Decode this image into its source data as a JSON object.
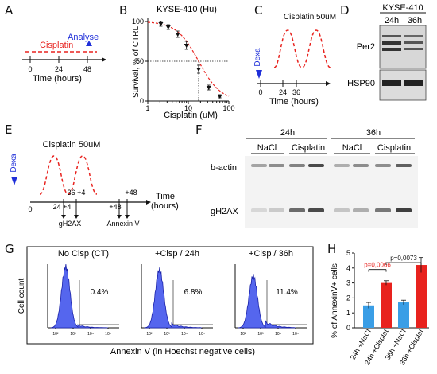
{
  "panels": {
    "A": {
      "letter": "A",
      "treatment": "Cisplatin",
      "analyse": "Analyse",
      "ticks": [
        "0",
        "24",
        "48"
      ],
      "xlabel": "Time (hours)",
      "colors": {
        "treatment": "#e8221e",
        "analyse": "#1f2fd9"
      }
    },
    "B": {
      "letter": "B",
      "chart_data": {
        "type": "scatter",
        "title": "KYSE-410 (Hu)",
        "xlabel": "Cisplatin (uM)",
        "ylabel": "Survival, % of CTRL",
        "x_scale": "log",
        "xlim": [
          1,
          100
        ],
        "ylim": [
          0,
          105
        ],
        "xticks": [
          "1",
          "10",
          "100"
        ],
        "yticks": [
          "0",
          "50",
          "100"
        ],
        "points": [
          {
            "x": 2.1,
            "y": 97,
            "err": 3
          },
          {
            "x": 3.2,
            "y": 93,
            "err": 3
          },
          {
            "x": 5.5,
            "y": 84,
            "err": 4
          },
          {
            "x": 9,
            "y": 70,
            "err": 5
          },
          {
            "x": 18,
            "y": 40,
            "err": 5
          },
          {
            "x": 32,
            "y": 17,
            "err": 3
          },
          {
            "x": 60,
            "y": 6,
            "err": 2
          }
        ],
        "fit": {
          "ic50": 18,
          "hill": 1.6
        },
        "colors": {
          "fit": "#e8221e",
          "points": "#111111"
        }
      }
    },
    "C": {
      "letter": "C",
      "title": "Cisplatin 50uM",
      "treatment": "Dexa",
      "ticks": [
        "0",
        "24",
        "36"
      ],
      "xlabel": "Time (hours)"
    },
    "D": {
      "letter": "D",
      "cell_line": "KYSE-410",
      "lanes": [
        "24h",
        "36h"
      ],
      "blots": [
        "Per2",
        "HSP90"
      ]
    },
    "E": {
      "letter": "E",
      "title": "Cisplatin 50uM",
      "treatment": "Dexa",
      "ticks": [
        "0",
        "24 +4",
        "36 +4",
        "+48",
        "+48"
      ],
      "time_label": "Time",
      "time_unit": "(hours)",
      "readouts": [
        "gH2AX",
        "Annexin V"
      ]
    },
    "F": {
      "letter": "F",
      "timepoints": [
        "24h",
        "36h"
      ],
      "conditions": [
        "NaCl",
        "Cisplatin",
        "NaCl",
        "Cisplatin"
      ],
      "blots": [
        "b-actin",
        "gH2AX"
      ]
    },
    "G": {
      "letter": "G",
      "ylabel": "Cell count",
      "xlabel": "Annexin V (in Hoechst negative cells)",
      "histograms": [
        {
          "title": "No Cisp (CT)",
          "percent": "0.4%"
        },
        {
          "title": "+Cisp / 24h",
          "percent": "6.8%"
        },
        {
          "title": "+Cisp / 36h",
          "percent": "11.4%"
        }
      ],
      "axis_ticks": [
        "10²",
        "10³",
        "10⁴",
        "10⁵"
      ],
      "colors": {
        "fill": "#5566ee",
        "line": "#1a22aa"
      }
    },
    "H": {
      "letter": "H",
      "chart_data": {
        "type": "bar",
        "ylabel": "% of AnnexinV+ cells",
        "categories": [
          "24h +NaCl",
          "24h +Cisplat",
          "36h +NaCl",
          "36h +Cisplat"
        ],
        "values": [
          1.5,
          3.0,
          1.7,
          4.2
        ],
        "errors": [
          0.2,
          0.15,
          0.15,
          0.5
        ],
        "colors": [
          "#3a9ee6",
          "#e8221e",
          "#3a9ee6",
          "#e8221e"
        ],
        "ylim": [
          0,
          5
        ],
        "yticks": [
          "0",
          "1",
          "2",
          "3",
          "4",
          "5"
        ],
        "annotations": [
          {
            "label": "p=0,0066",
            "from": 0,
            "to": 1,
            "color": "#e8221e"
          },
          {
            "label": "p=0,0073",
            "from": 2,
            "to": 3,
            "color": "#111111"
          }
        ]
      }
    }
  }
}
